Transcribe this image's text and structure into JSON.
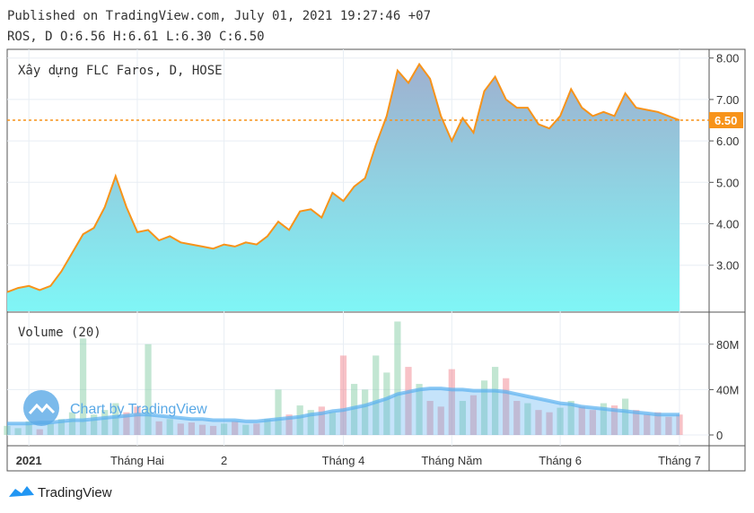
{
  "header": {
    "published": "Published on TradingView.com, July 01, 2021 19:27:46 +07",
    "ohlc": "ROS, D O:6.56 H:6.61 L:6.30 C:6.50"
  },
  "watermark": "Chart by TradingView",
  "brand": "TradingView",
  "chart_data": [
    {
      "type": "area",
      "title": "Xây dựng FLC Faros, D, HOSE",
      "color": "#f7931a",
      "categories": [
        null,
        null,
        "2021",
        null,
        null,
        null,
        null,
        null,
        null,
        null,
        null,
        null,
        "Tháng Hai",
        null,
        null,
        null,
        null,
        null,
        null,
        null,
        "2",
        null,
        null,
        null,
        null,
        null,
        null,
        null,
        null,
        null,
        null,
        "Tháng 4",
        null,
        null,
        null,
        null,
        null,
        null,
        null,
        null,
        null,
        "Tháng Năm",
        null,
        null,
        null,
        null,
        null,
        null,
        null,
        null,
        null,
        "Tháng 6",
        null,
        null,
        null,
        null,
        null,
        null,
        null,
        null,
        null,
        null,
        "Tháng 7"
      ],
      "values": [
        2.35,
        2.45,
        2.5,
        2.4,
        2.5,
        2.85,
        3.3,
        3.75,
        3.9,
        4.4,
        5.15,
        4.4,
        3.8,
        3.85,
        3.6,
        3.7,
        3.55,
        3.5,
        3.45,
        3.4,
        3.5,
        3.45,
        3.55,
        3.5,
        3.7,
        4.05,
        3.85,
        4.3,
        4.35,
        4.15,
        4.75,
        4.55,
        4.9,
        5.1,
        5.9,
        6.6,
        7.7,
        7.4,
        7.85,
        7.5,
        6.6,
        6.0,
        6.55,
        6.2,
        7.2,
        7.55,
        7.0,
        6.8,
        6.8,
        6.4,
        6.3,
        6.6,
        7.25,
        6.8,
        6.6,
        6.7,
        6.6,
        7.15,
        6.8,
        6.75,
        6.7,
        6.6,
        6.5
      ],
      "last_price": {
        "value": 6.5,
        "label": "6.50"
      },
      "ylim": [
        1.89,
        8.21
      ],
      "yticks": [
        {
          "value": 3,
          "label": "3.00"
        },
        {
          "value": 4,
          "label": "4.00"
        },
        {
          "value": 5,
          "label": "5.00"
        },
        {
          "value": 6,
          "label": "6.00"
        },
        {
          "value": 7,
          "label": "7.00"
        },
        {
          "value": 8,
          "label": "8.00"
        }
      ],
      "grid": true
    },
    {
      "type": "bar",
      "title": "Volume (20)",
      "up_color": "rgba(120,200,155,0.45)",
      "down_color": "rgba(240,120,130,0.45)",
      "average_color": "#5ab0f0",
      "values": [
        8000000,
        6000000,
        12000000,
        5000000,
        10000000,
        14000000,
        20000000,
        85000000,
        18000000,
        22000000,
        28000000,
        20000000,
        25000000,
        80000000,
        12000000,
        14000000,
        10000000,
        11000000,
        9000000,
        8000000,
        10000000,
        12000000,
        9000000,
        10000000,
        14000000,
        40000000,
        18000000,
        26000000,
        22000000,
        25000000,
        20000000,
        70000000,
        45000000,
        40000000,
        70000000,
        55000000,
        100000000,
        60000000,
        45000000,
        30000000,
        25000000,
        58000000,
        30000000,
        35000000,
        48000000,
        60000000,
        50000000,
        30000000,
        28000000,
        22000000,
        20000000,
        24000000,
        30000000,
        25000000,
        22000000,
        28000000,
        26000000,
        32000000,
        22000000,
        18000000,
        20000000,
        16000000,
        18000000
      ],
      "average": [
        10000000,
        10000000,
        10000000,
        11000000,
        11000000,
        12000000,
        13000000,
        13000000,
        14000000,
        15000000,
        16000000,
        17000000,
        18000000,
        18000000,
        17000000,
        16000000,
        15000000,
        14000000,
        14000000,
        13000000,
        13000000,
        13000000,
        12000000,
        12000000,
        13000000,
        14000000,
        15000000,
        16000000,
        18000000,
        19000000,
        21000000,
        22000000,
        24000000,
        26000000,
        29000000,
        32000000,
        36000000,
        38000000,
        40000000,
        41000000,
        41000000,
        40000000,
        40000000,
        39000000,
        39000000,
        39000000,
        38000000,
        36000000,
        34000000,
        32000000,
        30000000,
        28000000,
        27000000,
        25000000,
        24000000,
        23000000,
        22000000,
        21000000,
        20000000,
        19000000,
        18000000,
        18000000,
        18000000
      ],
      "ylim": [
        -9500000,
        107500000
      ],
      "yticks": [
        0,
        {
          "value": 40000000,
          "label": "40M"
        },
        {
          "value": 80000000,
          "label": "80M"
        }
      ],
      "grid": true
    }
  ]
}
